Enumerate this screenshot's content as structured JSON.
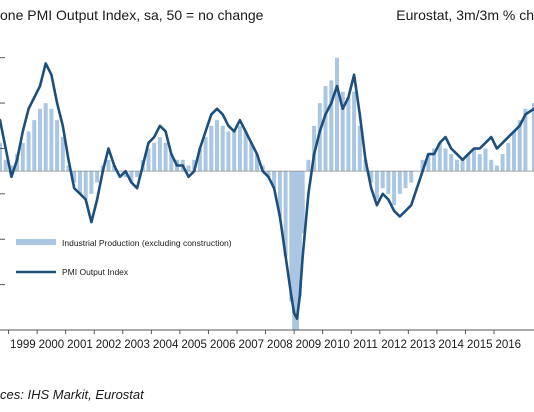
{
  "header": {
    "left_title": "one PMI Output Index, sa, 50 = no change",
    "right_title": "Eurostat, 3m/3m % ch"
  },
  "source": "ces: IHS Markit, Eurostat",
  "legend": {
    "bar_label": "Industrial Production (excluding construction)",
    "line_label": "PMI Output Index"
  },
  "colors": {
    "line": "#1d4f7c",
    "bars": "#aac6e2",
    "axis": "#555555"
  },
  "chart_data": {
    "type": "line",
    "title": "",
    "x_tick_labels": [
      "1999",
      "2000",
      "2001",
      "2002",
      "2003",
      "2004",
      "2005",
      "2006",
      "2007",
      "2008",
      "2009",
      "2010",
      "2011",
      "2012",
      "2013",
      "2014",
      "2015",
      "2016"
    ],
    "xlim": [
      1998.7,
      2017.4
    ],
    "ylim": [
      36,
      62
    ],
    "y_ref": 50,
    "grid": false,
    "legend_placement": "middle-left",
    "series": [
      {
        "name": "PMI Output Index",
        "kind": "line",
        "x": [
          1998.7,
          1998.9,
          1999.1,
          1999.3,
          1999.5,
          1999.7,
          1999.9,
          2000.1,
          2000.3,
          2000.5,
          2000.7,
          2000.9,
          2001.1,
          2001.3,
          2001.5,
          2001.7,
          2001.9,
          2002.1,
          2002.3,
          2002.5,
          2002.7,
          2002.9,
          2003.1,
          2003.3,
          2003.5,
          2003.7,
          2003.9,
          2004.1,
          2004.3,
          2004.5,
          2004.7,
          2004.9,
          2005.1,
          2005.3,
          2005.5,
          2005.7,
          2005.9,
          2006.1,
          2006.3,
          2006.5,
          2006.7,
          2006.9,
          2007.1,
          2007.3,
          2007.5,
          2007.7,
          2007.9,
          2008.1,
          2008.3,
          2008.5,
          2008.7,
          2008.9,
          2009.0,
          2009.1,
          2009.2,
          2009.3,
          2009.5,
          2009.7,
          2009.9,
          2010.1,
          2010.3,
          2010.5,
          2010.7,
          2010.9,
          2011.1,
          2011.3,
          2011.5,
          2011.7,
          2011.9,
          2012.1,
          2012.3,
          2012.5,
          2012.7,
          2012.9,
          2013.1,
          2013.3,
          2013.5,
          2013.7,
          2013.9,
          2014.1,
          2014.3,
          2014.5,
          2014.7,
          2014.9,
          2015.1,
          2015.3,
          2015.5,
          2015.7,
          2015.9,
          2016.1,
          2016.3,
          2016.5,
          2016.7,
          2016.9,
          2017.1,
          2017.4
        ],
        "y": [
          54.5,
          52.0,
          49.5,
          51.0,
          53.5,
          55.5,
          56.5,
          57.5,
          59.5,
          58.5,
          56.0,
          54.0,
          51.0,
          48.5,
          48.0,
          47.5,
          45.5,
          47.5,
          50.0,
          52.0,
          50.5,
          49.5,
          50.0,
          49.0,
          48.5,
          50.5,
          52.5,
          53.0,
          54.0,
          53.5,
          51.5,
          50.5,
          50.5,
          49.5,
          50.0,
          52.0,
          53.5,
          55.0,
          55.5,
          55.0,
          54.0,
          53.5,
          54.5,
          53.5,
          52.5,
          51.5,
          50.0,
          49.5,
          48.5,
          46.0,
          42.5,
          39.0,
          37.5,
          37.0,
          39.0,
          42.5,
          48.0,
          51.5,
          53.5,
          55.0,
          56.0,
          57.5,
          55.5,
          56.5,
          58.5,
          55.0,
          51.0,
          48.5,
          47.0,
          48.0,
          47.5,
          46.5,
          46.0,
          46.5,
          47.0,
          48.5,
          50.0,
          51.5,
          51.5,
          52.5,
          53.0,
          52.0,
          51.5,
          51.0,
          51.5,
          52.0,
          52.0,
          52.5,
          53.0,
          52.0,
          52.5,
          53.0,
          53.5,
          54.0,
          55.0,
          55.5
        ]
      },
      {
        "name": "Industrial Production (excluding construction)",
        "kind": "bar",
        "x": [
          1998.7,
          1998.9,
          1999.1,
          1999.3,
          1999.5,
          1999.7,
          1999.9,
          2000.1,
          2000.3,
          2000.5,
          2000.7,
          2000.9,
          2001.1,
          2001.3,
          2001.5,
          2001.7,
          2001.9,
          2002.1,
          2002.3,
          2002.5,
          2002.7,
          2002.9,
          2003.1,
          2003.3,
          2003.5,
          2003.7,
          2003.9,
          2004.1,
          2004.3,
          2004.5,
          2004.7,
          2004.9,
          2005.1,
          2005.3,
          2005.5,
          2005.7,
          2005.9,
          2006.1,
          2006.3,
          2006.5,
          2006.7,
          2006.9,
          2007.1,
          2007.3,
          2007.5,
          2007.7,
          2007.9,
          2008.1,
          2008.3,
          2008.5,
          2008.7,
          2008.9,
          2009.0,
          2009.1,
          2009.2,
          2009.3,
          2009.5,
          2009.7,
          2009.9,
          2010.1,
          2010.3,
          2010.5,
          2010.7,
          2010.9,
          2011.1,
          2011.3,
          2011.5,
          2011.7,
          2011.9,
          2012.1,
          2012.3,
          2012.5,
          2012.7,
          2012.9,
          2013.1,
          2013.3,
          2013.5,
          2013.7,
          2013.9,
          2014.1,
          2014.3,
          2014.5,
          2014.7,
          2014.9,
          2015.1,
          2015.3,
          2015.5,
          2015.7,
          2015.9,
          2016.1,
          2016.3,
          2016.5,
          2016.7,
          2016.9,
          2017.1,
          2017.4
        ],
        "y": [
          52.5,
          51.0,
          50.5,
          51.5,
          52.5,
          53.5,
          54.5,
          55.5,
          56.0,
          55.5,
          54.5,
          53.0,
          50.5,
          49.0,
          48.0,
          47.5,
          48.0,
          49.0,
          50.5,
          51.0,
          50.5,
          50.0,
          49.5,
          49.0,
          49.5,
          51.0,
          52.0,
          52.5,
          53.0,
          52.5,
          51.5,
          51.0,
          51.0,
          50.5,
          51.0,
          52.0,
          53.0,
          54.0,
          54.5,
          54.0,
          53.5,
          53.5,
          54.0,
          53.5,
          52.5,
          51.5,
          50.5,
          49.5,
          48.5,
          46.0,
          42.5,
          38.5,
          36.0,
          36.0,
          39.0,
          44.5,
          51.0,
          54.0,
          56.0,
          57.5,
          58.0,
          60.0,
          57.0,
          56.5,
          57.0,
          54.0,
          51.0,
          49.0,
          47.5,
          48.5,
          48.0,
          47.0,
          48.0,
          48.5,
          49.0,
          50.0,
          51.0,
          51.5,
          52.0,
          52.5,
          52.0,
          51.5,
          51.0,
          51.0,
          51.5,
          52.0,
          51.5,
          52.0,
          51.0,
          50.5,
          51.5,
          52.5,
          53.5,
          54.5,
          55.5,
          56.0
        ]
      }
    ]
  }
}
